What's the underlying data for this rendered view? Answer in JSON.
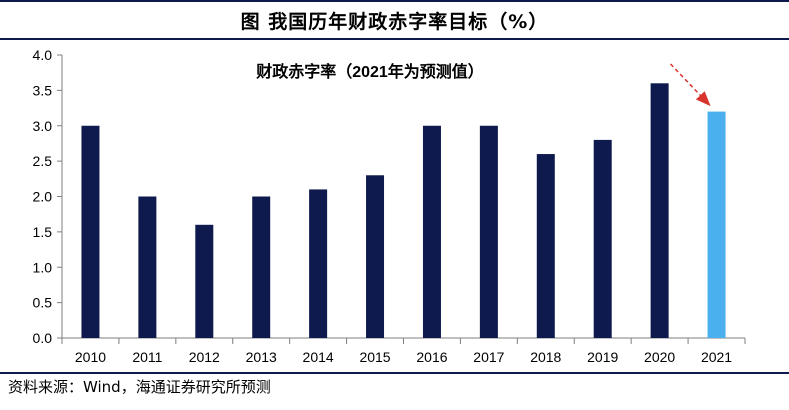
{
  "figure_title": "图  我国历年财政赤字率目标（%）",
  "source": "资料来源：Wind，海通证券研究所预测",
  "colors": {
    "actual": "#0e1a4e",
    "forecast": "#4ab0ee",
    "arrow": "#d9342b"
  },
  "chart_data": {
    "type": "bar",
    "title": "财政赤字率（2021年为预测值）",
    "categories": [
      "2010",
      "2011",
      "2012",
      "2013",
      "2014",
      "2015",
      "2016",
      "2017",
      "2018",
      "2019",
      "2020",
      "2021"
    ],
    "values": [
      3.0,
      2.0,
      1.6,
      2.0,
      2.1,
      2.3,
      3.0,
      3.0,
      2.6,
      2.8,
      3.6,
      3.2
    ],
    "forecast_index": 11,
    "ylim": [
      0,
      4.0
    ],
    "yticks": [
      "0.0",
      "0.5",
      "1.0",
      "1.5",
      "2.0",
      "2.5",
      "3.0",
      "3.5",
      "4.0"
    ],
    "xlabel": "",
    "ylabel": "",
    "grid": false
  }
}
